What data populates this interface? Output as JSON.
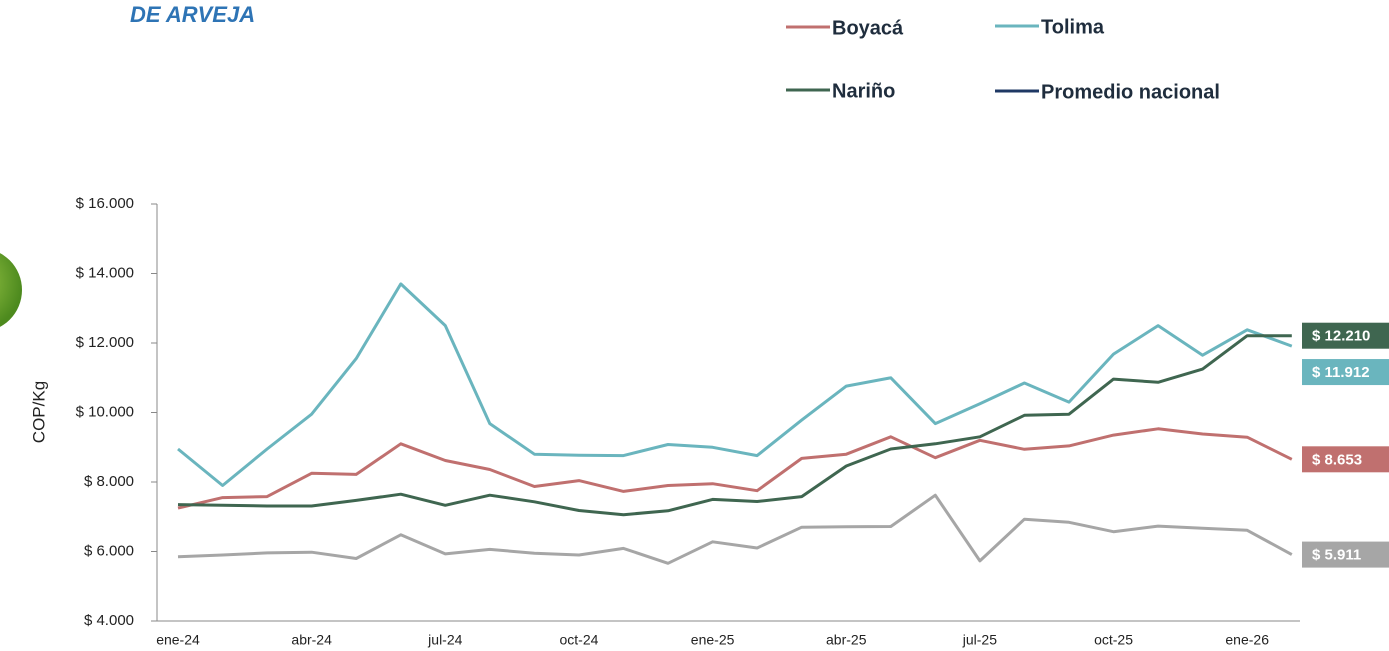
{
  "chart_data": {
    "type": "line",
    "title": "DE ARVEJA",
    "y_label": "COP/Kg",
    "categories": [
      "ene-24",
      null,
      null,
      "abr-24",
      null,
      null,
      "jul-24",
      null,
      null,
      "oct-24",
      null,
      null,
      "ene-25",
      null,
      null,
      "abr-25",
      null,
      null,
      "jul-25",
      null,
      null,
      "oct-25",
      null,
      null,
      "ene-26",
      null
    ],
    "ylim": [
      4000,
      16000
    ],
    "yticks": [
      {
        "value": 4000,
        "label": "$ 4.000"
      },
      {
        "value": 6000,
        "label": "$ 6.000"
      },
      {
        "value": 8000,
        "label": "$ 8.000"
      },
      {
        "value": 10000,
        "label": "$ 10.000"
      },
      {
        "value": 12000,
        "label": "$ 12.000"
      },
      {
        "value": 14000,
        "label": "$ 14.000"
      },
      {
        "value": 16000,
        "label": "$ 16.000"
      }
    ],
    "grid": false,
    "series": [
      {
        "name": "Boyacá",
        "color": "#c0706f",
        "values": [
          7250,
          7550,
          7580,
          8250,
          8220,
          9100,
          8620,
          8360,
          7870,
          8040,
          7730,
          7900,
          7950,
          7750,
          8680,
          8800,
          9300,
          8700,
          9200,
          8940,
          9040,
          9350,
          9530,
          9380,
          9290,
          8653
        ],
        "value_labels": [
          null,
          null,
          null,
          null,
          null,
          null,
          null,
          null,
          null,
          null,
          null,
          null,
          null,
          null,
          null,
          null,
          null,
          null,
          null,
          null,
          null,
          null,
          null,
          null,
          null,
          "$ 8.653"
        ]
      },
      {
        "name": "Tolima",
        "color": "#6ab5be",
        "values": [
          8950,
          7900,
          8950,
          9950,
          11550,
          13700,
          12500,
          9680,
          8800,
          8770,
          8760,
          9080,
          9000,
          8760,
          9780,
          10760,
          11000,
          9680,
          10250,
          10850,
          10300,
          11680,
          12500,
          11650,
          12380,
          11912
        ],
        "value_labels": [
          null,
          null,
          null,
          null,
          null,
          null,
          null,
          null,
          null,
          null,
          null,
          null,
          null,
          null,
          null,
          null,
          null,
          null,
          null,
          null,
          null,
          null,
          null,
          null,
          null,
          "$ 11.912"
        ]
      },
      {
        "name": "Nariño",
        "color": "#3f6650",
        "values": [
          7350,
          7330,
          7310,
          7310,
          7470,
          7650,
          7330,
          7620,
          7430,
          7180,
          7060,
          7170,
          7500,
          7440,
          7580,
          8460,
          8950,
          9100,
          9300,
          9920,
          9950,
          10960,
          10870,
          11250,
          12210,
          12210
        ],
        "value_labels": [
          null,
          null,
          null,
          null,
          null,
          null,
          null,
          null,
          null,
          null,
          null,
          null,
          null,
          null,
          null,
          null,
          null,
          null,
          null,
          null,
          null,
          null,
          null,
          null,
          null,
          "$ 12.210"
        ]
      },
      {
        "name": "Promedio nacional",
        "color": "#a6a6a6",
        "legend_color": "#1f3864",
        "values": [
          5850,
          5900,
          5960,
          5980,
          5800,
          6480,
          5930,
          6060,
          5950,
          5900,
          6090,
          5660,
          6280,
          6100,
          6700,
          6710,
          6720,
          7620,
          5730,
          6930,
          6840,
          6570,
          6730,
          6670,
          6610,
          5911
        ],
        "value_labels": [
          null,
          null,
          null,
          null,
          null,
          null,
          null,
          null,
          null,
          null,
          null,
          null,
          null,
          null,
          null,
          null,
          null,
          null,
          null,
          null,
          null,
          null,
          null,
          null,
          null,
          "$ 5.911"
        ]
      }
    ]
  }
}
